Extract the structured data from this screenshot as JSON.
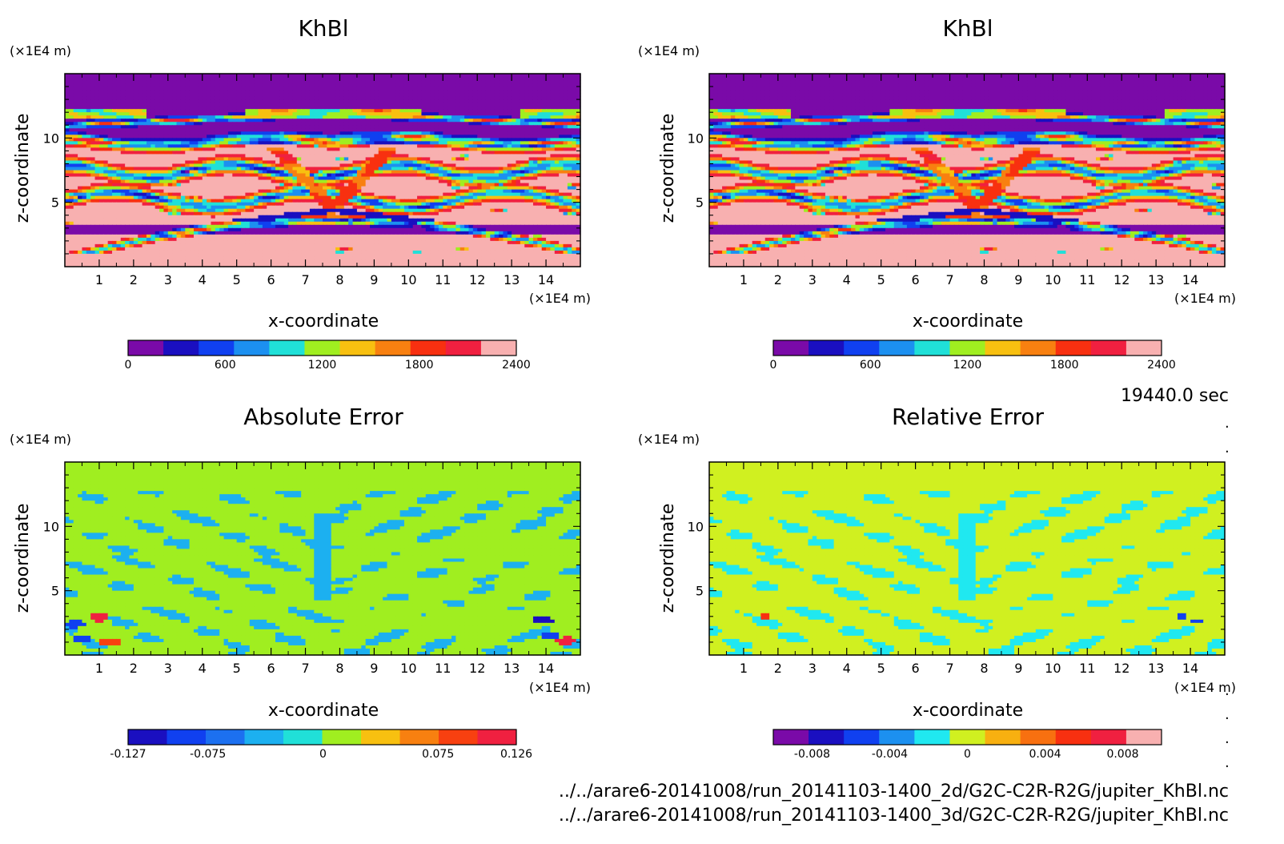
{
  "chart_data": [
    {
      "type": "heatmap",
      "title": "KhBl",
      "xlabel": "x-coordinate",
      "ylabel": "z-coordinate",
      "x_unit": "(×1E4 m)",
      "y_unit": "(×1E4 m)",
      "xlim": [
        0,
        15
      ],
      "ylim": [
        0,
        15
      ],
      "xticks": [
        "1",
        "2",
        "3",
        "4",
        "5",
        "6",
        "7",
        "8",
        "9",
        "10",
        "11",
        "12",
        "13",
        "14"
      ],
      "yticks": [
        "5",
        "10"
      ],
      "colorbar": {
        "min": 0,
        "max": 2400,
        "tick_values": [
          0,
          600,
          1200,
          1800,
          2400
        ],
        "tick_labels": [
          "0",
          "600",
          "1200",
          "1800",
          "2400"
        ],
        "colors": [
          "#7a0aa8",
          "#1a0fc0",
          "#1040f0",
          "#1c90f0",
          "#20e0d8",
          "#a0ee20",
          "#f8c010",
          "#f88010",
          "#f83010",
          "#f02040",
          "#f8b0b0"
        ]
      },
      "pattern": "khbl"
    },
    {
      "type": "heatmap",
      "title": "KhBl",
      "xlabel": "x-coordinate",
      "ylabel": "z-coordinate",
      "x_unit": "(×1E4 m)",
      "y_unit": "(×1E4 m)",
      "xlim": [
        0,
        15
      ],
      "ylim": [
        0,
        15
      ],
      "xticks": [
        "1",
        "2",
        "3",
        "4",
        "5",
        "6",
        "7",
        "8",
        "9",
        "10",
        "11",
        "12",
        "13",
        "14"
      ],
      "yticks": [
        "5",
        "10"
      ],
      "colorbar": {
        "min": 0,
        "max": 2400,
        "tick_values": [
          0,
          600,
          1200,
          1800,
          2400
        ],
        "tick_labels": [
          "0",
          "600",
          "1200",
          "1800",
          "2400"
        ],
        "colors": [
          "#7a0aa8",
          "#1a0fc0",
          "#1040f0",
          "#1c90f0",
          "#20e0d8",
          "#a0ee20",
          "#f8c010",
          "#f88010",
          "#f83010",
          "#f02040",
          "#f8b0b0"
        ]
      },
      "pattern": "khbl"
    },
    {
      "type": "heatmap",
      "title": "Absolute Error",
      "xlabel": "x-coordinate",
      "ylabel": "z-coordinate",
      "x_unit": "(×1E4 m)",
      "y_unit": "(×1E4 m)",
      "xlim": [
        0,
        15
      ],
      "ylim": [
        0,
        15
      ],
      "xticks": [
        "1",
        "2",
        "3",
        "4",
        "5",
        "6",
        "7",
        "8",
        "9",
        "10",
        "11",
        "12",
        "13",
        "14"
      ],
      "yticks": [
        "5",
        "10"
      ],
      "colorbar": {
        "min": -0.127,
        "max": 0.126,
        "tick_values": [
          -0.127,
          -0.075,
          0,
          0.075,
          0.126
        ],
        "tick_labels": [
          "-0.127",
          "-0.075",
          "0",
          "0.075",
          "0.126"
        ],
        "colors": [
          "#1a0fc0",
          "#1040f0",
          "#1c70f0",
          "#1cb0f0",
          "#20e0d8",
          "#a0ee20",
          "#f8c010",
          "#f88010",
          "#f84010",
          "#f02040"
        ]
      },
      "pattern": "abs"
    },
    {
      "type": "heatmap",
      "title": "Relative Error",
      "xlabel": "x-coordinate",
      "ylabel": "z-coordinate",
      "x_unit": "(×1E4 m)",
      "y_unit": "(×1E4 m)",
      "xlim": [
        0,
        15
      ],
      "ylim": [
        0,
        15
      ],
      "xticks": [
        "1",
        "2",
        "3",
        "4",
        "5",
        "6",
        "7",
        "8",
        "9",
        "10",
        "11",
        "12",
        "13",
        "14"
      ],
      "yticks": [
        "5",
        "10"
      ],
      "colorbar": {
        "min": -0.01,
        "max": 0.01,
        "tick_values": [
          -0.008,
          -0.004,
          0,
          0.004,
          0.008
        ],
        "tick_labels": [
          "-0.008",
          "-0.004",
          "0",
          "0.004",
          "0.008"
        ],
        "colors": [
          "#7a0aa8",
          "#1a0fc0",
          "#1040f0",
          "#1c90f0",
          "#20e8f0",
          "#d0f020",
          "#f8b010",
          "#f87010",
          "#f83010",
          "#f02040",
          "#f8b0b0"
        ]
      },
      "pattern": "rel"
    }
  ],
  "footer": {
    "time": "19440.0 sec",
    "file1": "../../arare6-20141008/run_20141103-1400_2d/G2C-C2R-R2G/jupiter_KhBl.nc",
    "file2": "../../arare6-20141008/run_20141103-1400_3d/G2C-C2R-R2G/jupiter_KhBl.nc"
  }
}
